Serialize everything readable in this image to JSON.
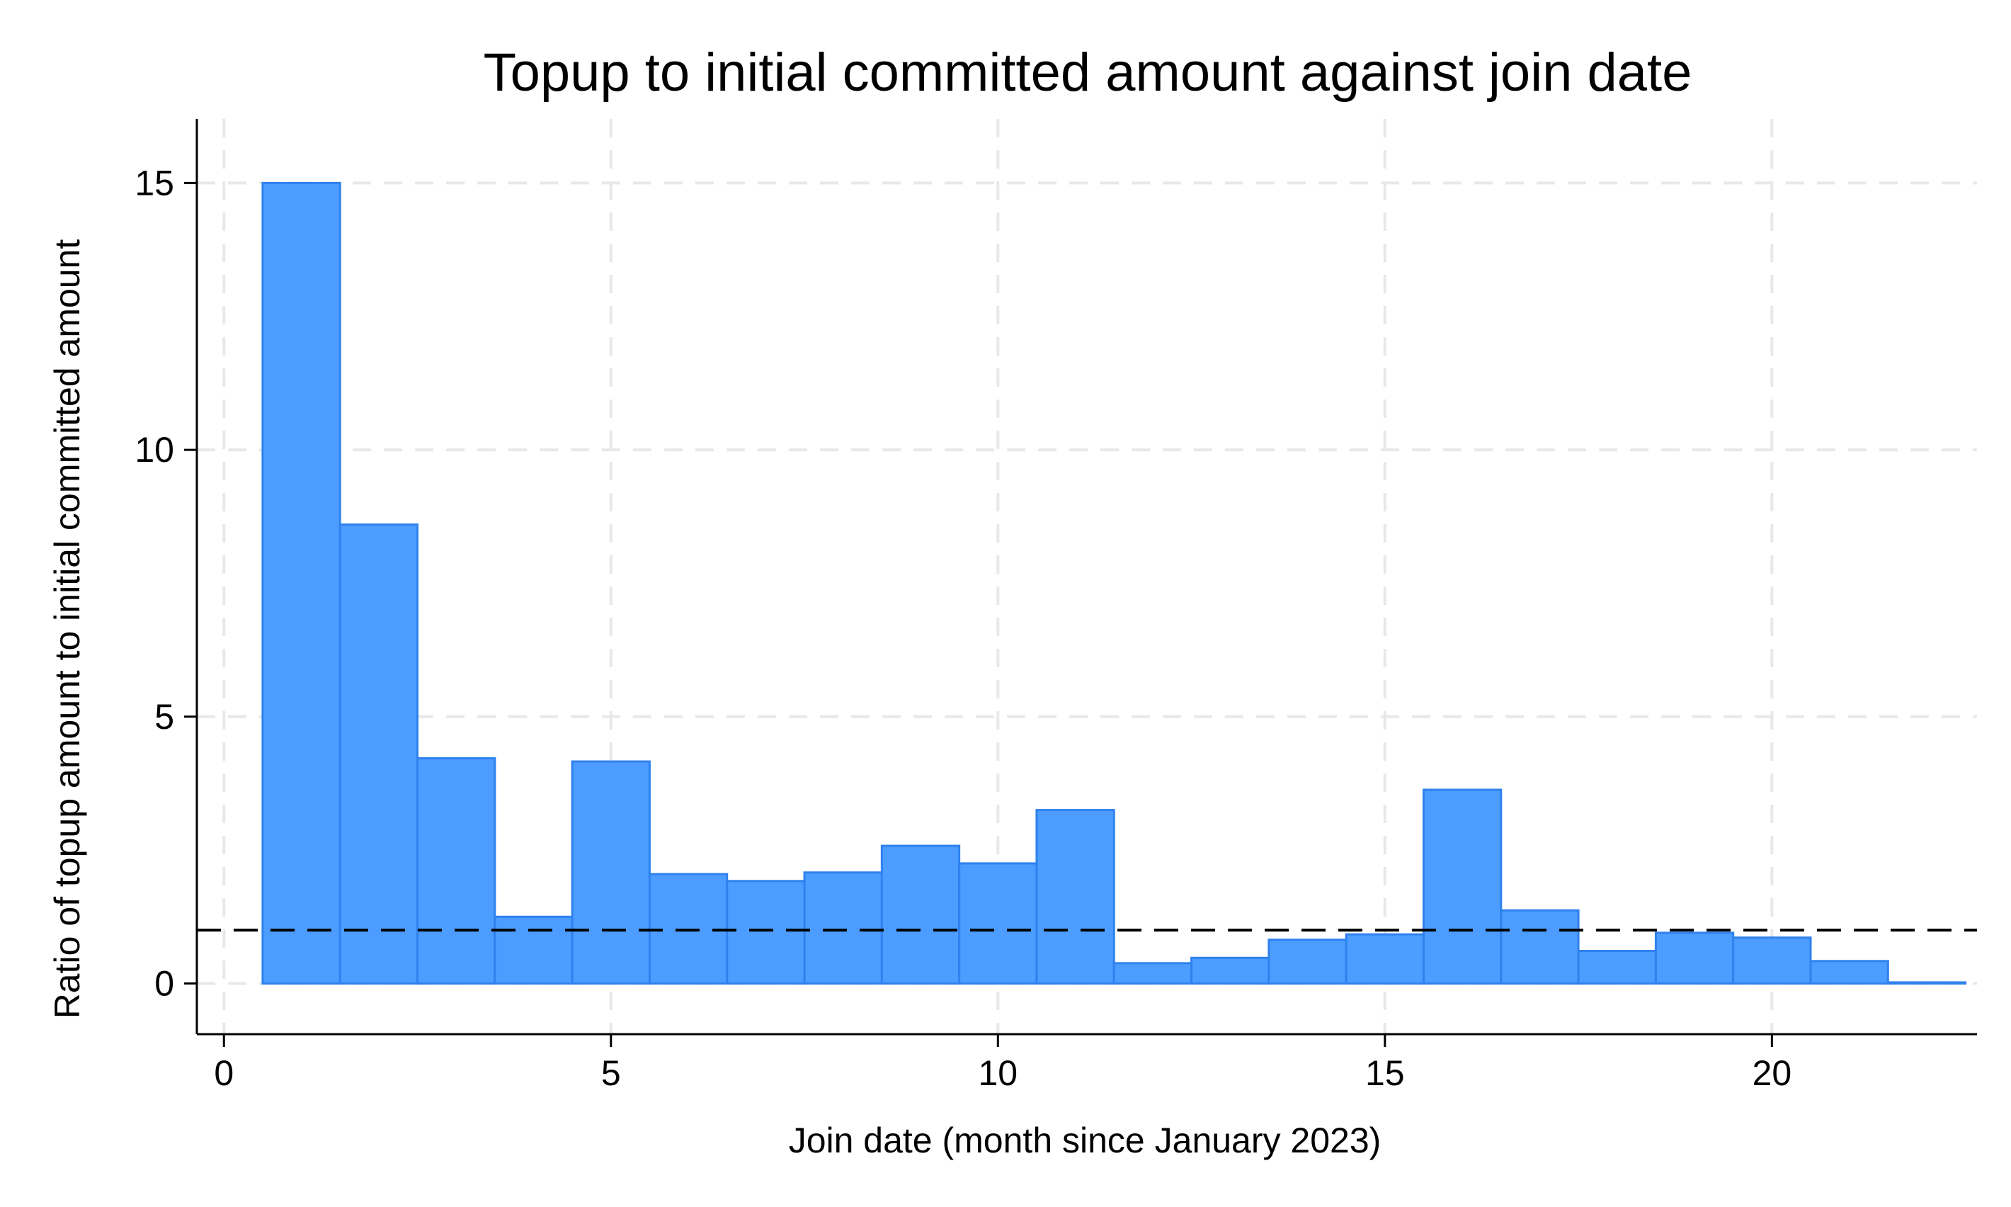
{
  "chart_data": {
    "type": "bar",
    "title": "Topup to initial committed amount against join date",
    "xlabel": "Join date (month since January 2023)",
    "ylabel": "Ratio of topup amount to initial committed amount",
    "xlim": [
      -0.35,
      22.65
    ],
    "ylim": [
      -0.95,
      16.2
    ],
    "xticks": [
      0,
      5,
      10,
      15,
      20
    ],
    "yticks": [
      0,
      5,
      10,
      15
    ],
    "grid": true,
    "bar_width": 1,
    "x": [
      1,
      2,
      3,
      4,
      5,
      6,
      7,
      8,
      9,
      10,
      11,
      12,
      13,
      14,
      15,
      16,
      17,
      18,
      19,
      20,
      21,
      22
    ],
    "values": [
      15.0,
      8.6,
      4.22,
      1.25,
      4.16,
      2.05,
      1.92,
      2.08,
      2.58,
      2.25,
      3.25,
      0.38,
      0.48,
      0.82,
      0.92,
      3.63,
      1.37,
      0.61,
      0.95,
      0.86,
      0.42,
      0.02
    ],
    "reference_line": {
      "y": 1.0,
      "style": "dashed"
    },
    "colors": {
      "bar_fill": "#4c9dff",
      "bar_edge": "#2f82ee",
      "reference_line": "#000000"
    }
  }
}
